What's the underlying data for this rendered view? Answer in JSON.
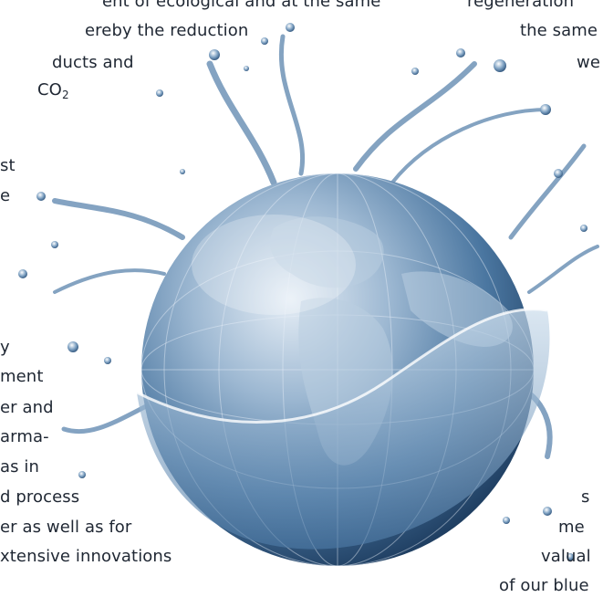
{
  "left_column": {
    "line1": "ent of ecological and at the same",
    "line2": "ereby the reduction",
    "line3": "ducts and",
    "line4_main": "CO",
    "line4_sub": "2",
    "line5": "st",
    "line6": "e",
    "line7": "y",
    "line8": "ment",
    "line9": "er and",
    "line10": "arma-",
    "line11": "as in",
    "line12": "d process",
    "line13": "er as well as for",
    "line14": "xtensive innovations"
  },
  "right_column": {
    "line1": "regeneration",
    "line2": "the same",
    "line3": "we",
    "line4": "s",
    "line5": "me",
    "line6": "valual",
    "line7": "of our blue"
  },
  "image": {
    "subject": "water-splash-globe",
    "colors": {
      "ocean": "#3f6f9c",
      "highlight": "#dbe8f3",
      "deep": "#1d3f63"
    }
  }
}
